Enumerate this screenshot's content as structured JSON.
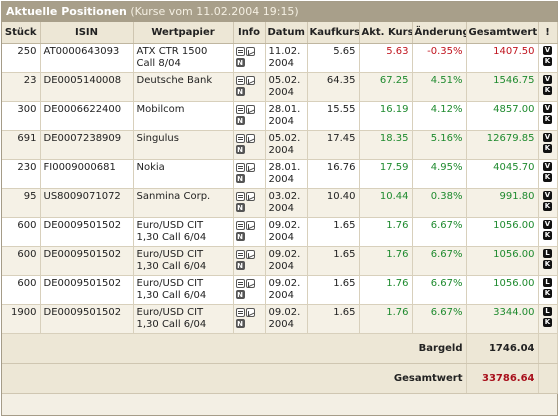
{
  "title": "Aktuelle Positionen",
  "subtitle": "(Kurse vom 11.02.2004 19:15)",
  "columns": [
    "Stück",
    "ISIN",
    "Wertpapier",
    "Info",
    "Datum",
    "Kaufkurs",
    "Akt. Kurs",
    "Änderung",
    "Gesamtwert",
    "!"
  ],
  "rows": [
    {
      "stueck": "250",
      "isin": "AT0000643093",
      "wp1": "ATX CTR 1500",
      "wp2": "Call 8/04",
      "d1": "11.02.",
      "d2": "2004",
      "kauf": "5.65",
      "akt": "5.63",
      "aend": "-0.35%",
      "wert": "1407.50",
      "trend": "neg",
      "b1": "V",
      "b2": "K"
    },
    {
      "stueck": "23",
      "isin": "DE0005140008",
      "wp1": "Deutsche Bank",
      "wp2": "",
      "d1": "05.02.",
      "d2": "2004",
      "kauf": "64.35",
      "akt": "67.25",
      "aend": "4.51%",
      "wert": "1546.75",
      "trend": "pos",
      "b1": "V",
      "b2": "K"
    },
    {
      "stueck": "300",
      "isin": "DE0006622400",
      "wp1": "Mobilcom",
      "wp2": "",
      "d1": "28.01.",
      "d2": "2004",
      "kauf": "15.55",
      "akt": "16.19",
      "aend": "4.12%",
      "wert": "4857.00",
      "trend": "pos",
      "b1": "V",
      "b2": "K"
    },
    {
      "stueck": "691",
      "isin": "DE0007238909",
      "wp1": "Singulus",
      "wp2": "",
      "d1": "05.02.",
      "d2": "2004",
      "kauf": "17.45",
      "akt": "18.35",
      "aend": "5.16%",
      "wert": "12679.85",
      "trend": "pos",
      "b1": "V",
      "b2": "K"
    },
    {
      "stueck": "230",
      "isin": "FI0009000681",
      "wp1": "Nokia",
      "wp2": "",
      "d1": "28.01.",
      "d2": "2004",
      "kauf": "16.76",
      "akt": "17.59",
      "aend": "4.95%",
      "wert": "4045.70",
      "trend": "pos",
      "b1": "V",
      "b2": "K"
    },
    {
      "stueck": "95",
      "isin": "US8009071072",
      "wp1": "Sanmina Corp.",
      "wp2": "",
      "d1": "03.02.",
      "d2": "2004",
      "kauf": "10.40",
      "akt": "10.44",
      "aend": "0.38%",
      "wert": "991.80",
      "trend": "pos",
      "b1": "V",
      "b2": "K"
    },
    {
      "stueck": "600",
      "isin": "DE0009501502",
      "wp1": "Euro/USD CIT",
      "wp2": "1,30 Call 6/04",
      "d1": "09.02.",
      "d2": "2004",
      "kauf": "1.65",
      "akt": "1.76",
      "aend": "6.67%",
      "wert": "1056.00",
      "trend": "pos",
      "b1": "V",
      "b2": "K"
    },
    {
      "stueck": "600",
      "isin": "DE0009501502",
      "wp1": "Euro/USD CIT",
      "wp2": "1,30 Call 6/04",
      "d1": "09.02.",
      "d2": "2004",
      "kauf": "1.65",
      "akt": "1.76",
      "aend": "6.67%",
      "wert": "1056.00",
      "trend": "pos",
      "b1": "L",
      "b2": "K"
    },
    {
      "stueck": "600",
      "isin": "DE0009501502",
      "wp1": "Euro/USD CIT",
      "wp2": "1,30 Call 6/04",
      "d1": "09.02.",
      "d2": "2004",
      "kauf": "1.65",
      "akt": "1.76",
      "aend": "6.67%",
      "wert": "1056.00",
      "trend": "pos",
      "b1": "L",
      "b2": "K"
    },
    {
      "stueck": "1900",
      "isin": "DE0009501502",
      "wp1": "Euro/USD CIT",
      "wp2": "1,30 Call 6/04",
      "d1": "09.02.",
      "d2": "2004",
      "kauf": "1.65",
      "akt": "1.76",
      "aend": "6.67%",
      "wert": "3344.00",
      "trend": "pos",
      "b1": "L",
      "b2": "K"
    }
  ],
  "footer": {
    "bargeld_label": "Bargeld",
    "bargeld_value": "1746.04",
    "gesamt_label": "Gesamtwert",
    "gesamt_value": "33786.64"
  },
  "colors": {
    "positive": "#1e8a2e",
    "negative": "#c0141e",
    "header_bar": "#a89f8a",
    "total": "#a8101c"
  },
  "icons": {
    "info": [
      "document-icon",
      "chart-icon",
      "news-icon"
    ]
  }
}
